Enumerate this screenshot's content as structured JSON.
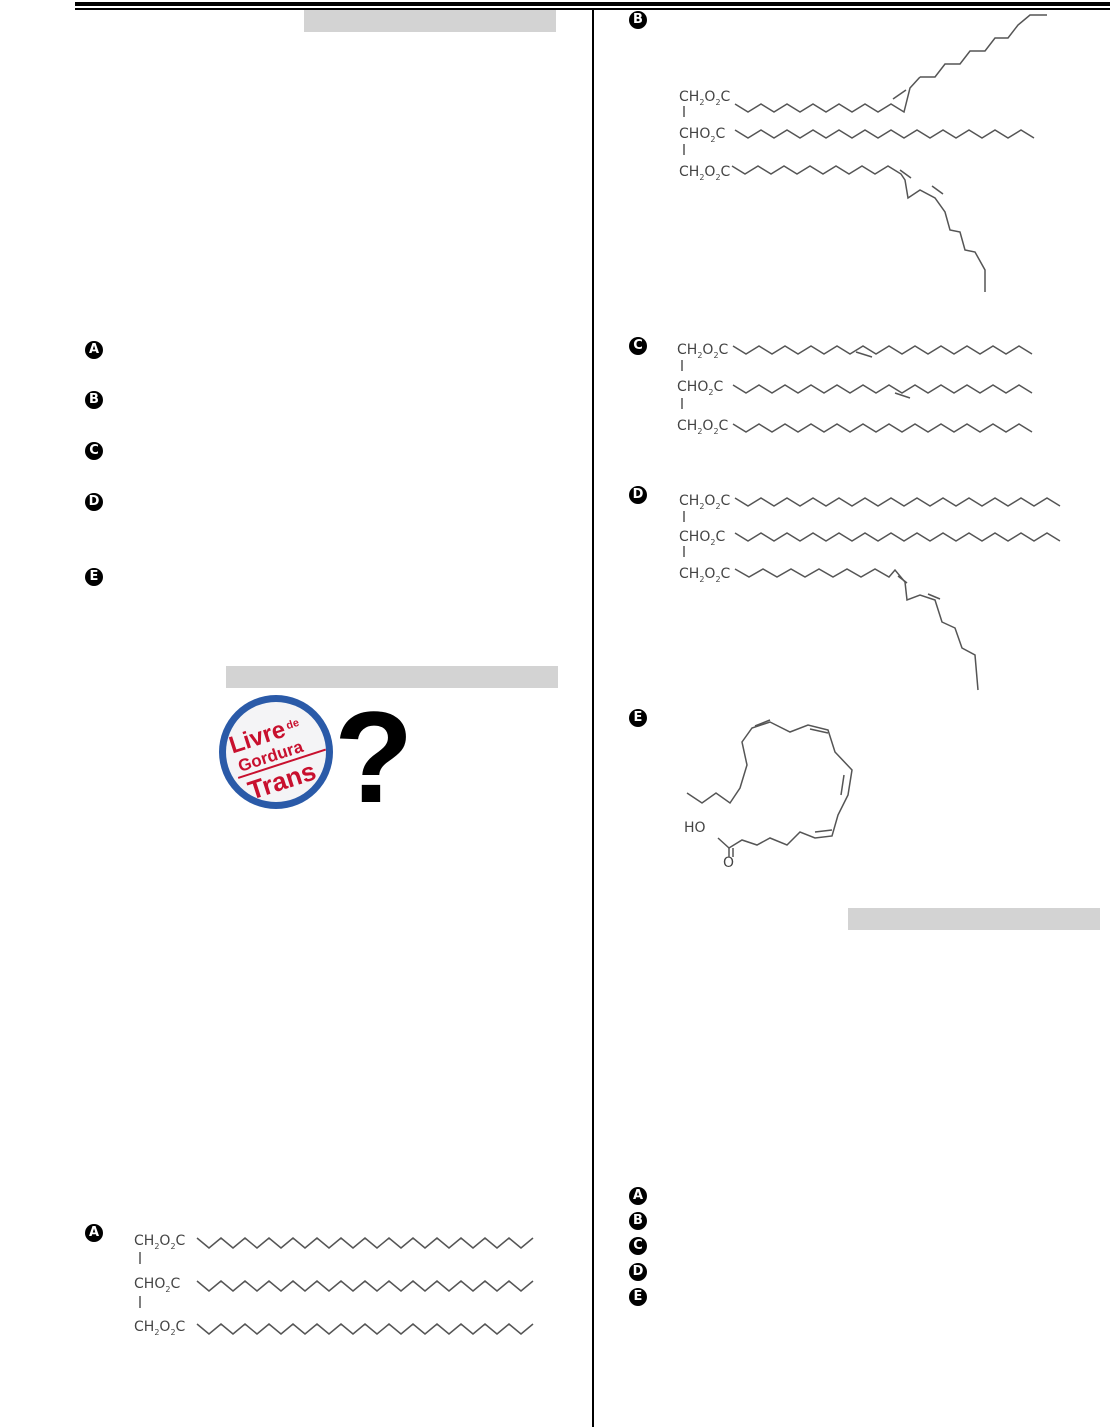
{
  "left_column": {
    "options_q1": [
      "A",
      "B",
      "C",
      "D",
      "E"
    ],
    "logo": {
      "text_line1": "Livre",
      "text_de": "de",
      "text_line2": "Gordura",
      "text_line3": "Trans",
      "symbol": "?",
      "colors": {
        "red": "#c8102e",
        "blue": "#2a5aa8"
      }
    },
    "structure_a": {
      "option": "A",
      "labels": [
        "CH2O2C",
        "CHO2C",
        "CH2O2C"
      ]
    }
  },
  "right_column": {
    "structures": [
      {
        "option": "B",
        "labels": [
          "CH2O2C",
          "CHO2C",
          "CH2O2C"
        ]
      },
      {
        "option": "C",
        "labels": [
          "CH2O2C",
          "CHO2C",
          "CH2O2C"
        ]
      },
      {
        "option": "D",
        "labels": [
          "CH2O2C",
          "CHO2C",
          "CH2O2C"
        ]
      },
      {
        "option": "E",
        "labels": [
          "HO",
          "O"
        ]
      }
    ],
    "options_q3": [
      "A",
      "B",
      "C",
      "D",
      "E"
    ]
  }
}
